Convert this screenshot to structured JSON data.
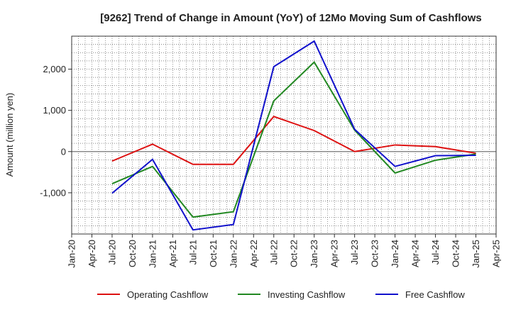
{
  "chart_data": {
    "type": "line",
    "title": "[9262]  Trend of Change in Amount (YoY) of 12Mo Moving Sum of Cashflows",
    "xlabel": "",
    "ylabel": "Amount (million yen)",
    "x": [
      "Jan-20",
      "Apr-20",
      "Jul-20",
      "Oct-20",
      "Jan-21",
      "Apr-21",
      "Jul-21",
      "Oct-21",
      "Jan-22",
      "Apr-22",
      "Jul-22",
      "Oct-22",
      "Jan-23",
      "Apr-23",
      "Jul-23",
      "Oct-23",
      "Jan-24",
      "Apr-24",
      "Jul-24",
      "Oct-24",
      "Jan-25",
      "Apr-25"
    ],
    "ylim": [
      -2000,
      2800
    ],
    "yticks": [
      -1000,
      0,
      1000,
      2000
    ],
    "ytick_labels": [
      "-1,000",
      "0",
      "1,000",
      "2,000"
    ],
    "grid": true,
    "legend_position": "bottom",
    "series": [
      {
        "name": "Operating Cashflow",
        "color": "#dd1111",
        "points": [
          [
            "Jul-20",
            -230
          ],
          [
            "Jan-21",
            180
          ],
          [
            "Jul-21",
            -310
          ],
          [
            "Jan-22",
            -310
          ],
          [
            "Jul-22",
            850
          ],
          [
            "Jan-23",
            510
          ],
          [
            "Jul-23",
            0
          ],
          [
            "Jan-24",
            160
          ],
          [
            "Jul-24",
            120
          ],
          [
            "Jan-25",
            -40
          ]
        ]
      },
      {
        "name": "Investing Cashflow",
        "color": "#228822",
        "points": [
          [
            "Jul-20",
            -780
          ],
          [
            "Jan-21",
            -360
          ],
          [
            "Jul-21",
            -1590
          ],
          [
            "Jan-22",
            -1460
          ],
          [
            "Jul-22",
            1230
          ],
          [
            "Jan-23",
            2170
          ],
          [
            "Jul-23",
            520
          ],
          [
            "Jan-24",
            -520
          ],
          [
            "Jul-24",
            -210
          ],
          [
            "Jan-25",
            -60
          ]
        ]
      },
      {
        "name": "Free Cashflow",
        "color": "#1111cc",
        "points": [
          [
            "Jul-20",
            -1010
          ],
          [
            "Jan-21",
            -190
          ],
          [
            "Jul-21",
            -1900
          ],
          [
            "Jan-22",
            -1770
          ],
          [
            "Jul-22",
            2060
          ],
          [
            "Jan-23",
            2680
          ],
          [
            "Jul-23",
            540
          ],
          [
            "Jan-24",
            -360
          ],
          [
            "Jul-24",
            -100
          ],
          [
            "Jan-25",
            -90
          ]
        ]
      }
    ]
  }
}
